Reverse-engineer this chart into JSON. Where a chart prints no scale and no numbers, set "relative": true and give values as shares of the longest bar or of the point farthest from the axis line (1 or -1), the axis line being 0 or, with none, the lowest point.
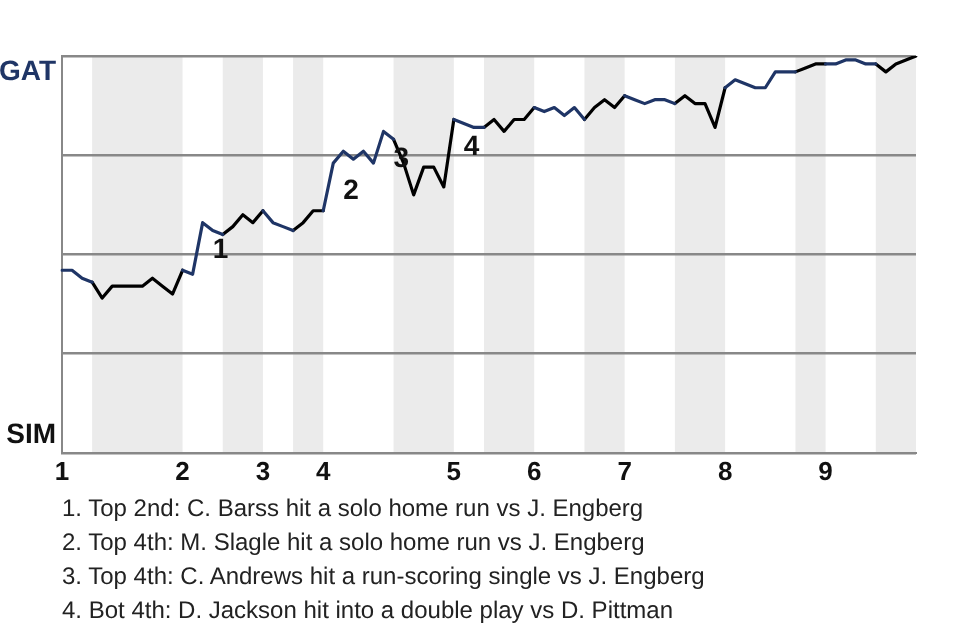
{
  "chart_data": {
    "type": "line",
    "relative": true,
    "categories": [
      "1",
      null,
      null,
      null,
      null,
      null,
      null,
      null,
      null,
      null,
      null,
      null,
      "2",
      null,
      null,
      null,
      null,
      null,
      null,
      null,
      "3",
      null,
      null,
      null,
      null,
      null,
      "4",
      null,
      null,
      null,
      null,
      null,
      null,
      null,
      null,
      null,
      null,
      null,
      null,
      "5",
      null,
      null,
      null,
      null,
      null,
      null,
      null,
      "6",
      null,
      null,
      null,
      null,
      null,
      null,
      null,
      null,
      "7",
      null,
      null,
      null,
      null,
      null,
      null,
      null,
      null,
      null,
      "8",
      null,
      null,
      null,
      null,
      null,
      null,
      null,
      null,
      null,
      "9",
      null,
      null,
      null,
      null,
      null,
      null,
      null,
      null,
      null
    ],
    "grid": "y",
    "legend": false,
    "marker": "none",
    "line_style": "solid",
    "series": [
      {
        "color": "#1f3566",
        "values": [
          0.46,
          0.46,
          0.44,
          0.43,
          null,
          null,
          null,
          null,
          null,
          null,
          null,
          null,
          0.46,
          0.45,
          0.58,
          0.56,
          0.55,
          null,
          null,
          null,
          0.61,
          0.58,
          0.57,
          0.56,
          null,
          null,
          0.61,
          0.73,
          0.76,
          0.74,
          0.76,
          0.73,
          0.81,
          0.79,
          null,
          null,
          null,
          null,
          null,
          0.84,
          0.83,
          0.82,
          0.82,
          null,
          null,
          null,
          null,
          0.87,
          0.86,
          0.87,
          0.85,
          0.87,
          0.84,
          null,
          null,
          null,
          0.9,
          0.89,
          0.88,
          0.89,
          0.89,
          0.88,
          null,
          null,
          null,
          null,
          0.92,
          0.94,
          0.93,
          0.92,
          0.92,
          0.96,
          0.96,
          0.96,
          null,
          null,
          0.98,
          0.98,
          0.99,
          0.99,
          0.98,
          0.98,
          null,
          null,
          null,
          null
        ]
      },
      {
        "color": "#000000",
        "values": [
          null,
          null,
          null,
          0.43,
          0.39,
          0.42,
          0.42,
          0.42,
          0.42,
          0.44,
          0.42,
          0.4,
          0.46,
          null,
          null,
          null,
          0.55,
          0.57,
          0.6,
          0.58,
          0.61,
          null,
          null,
          0.56,
          0.58,
          0.61,
          0.61,
          null,
          null,
          null,
          null,
          null,
          null,
          0.79,
          0.73,
          0.65,
          0.72,
          0.72,
          0.67,
          0.84,
          null,
          null,
          0.82,
          0.84,
          0.81,
          0.84,
          0.84,
          0.87,
          null,
          null,
          null,
          null,
          0.84,
          0.87,
          0.89,
          0.87,
          0.9,
          null,
          null,
          null,
          null,
          0.88,
          0.9,
          0.88,
          0.88,
          0.82,
          0.92,
          null,
          null,
          null,
          null,
          null,
          null,
          0.96,
          0.97,
          0.98,
          0.98,
          null,
          null,
          null,
          null,
          0.98,
          0.96,
          0.98,
          0.99,
          1
        ]
      }
    ],
    "annotations": [
      "GAT",
      "SIM",
      {
        "text": "1",
        "y": 0.58
      },
      {
        "text": "2",
        "y": 0.73
      },
      {
        "text": "3",
        "y": 0.81
      },
      {
        "text": "4",
        "y": 0.84
      },
      "1. Top 2nd: C. Barss hit a solo home run vs J. Engberg",
      "2. Top 4th: M. Slagle hit a solo home run vs J. Engberg",
      "3. Top 4th: C. Andrews hit a run-scoring single vs J. Engberg",
      "4. Bot 4th: D. Jackson hit into a double play vs D. Pittman"
    ]
  }
}
